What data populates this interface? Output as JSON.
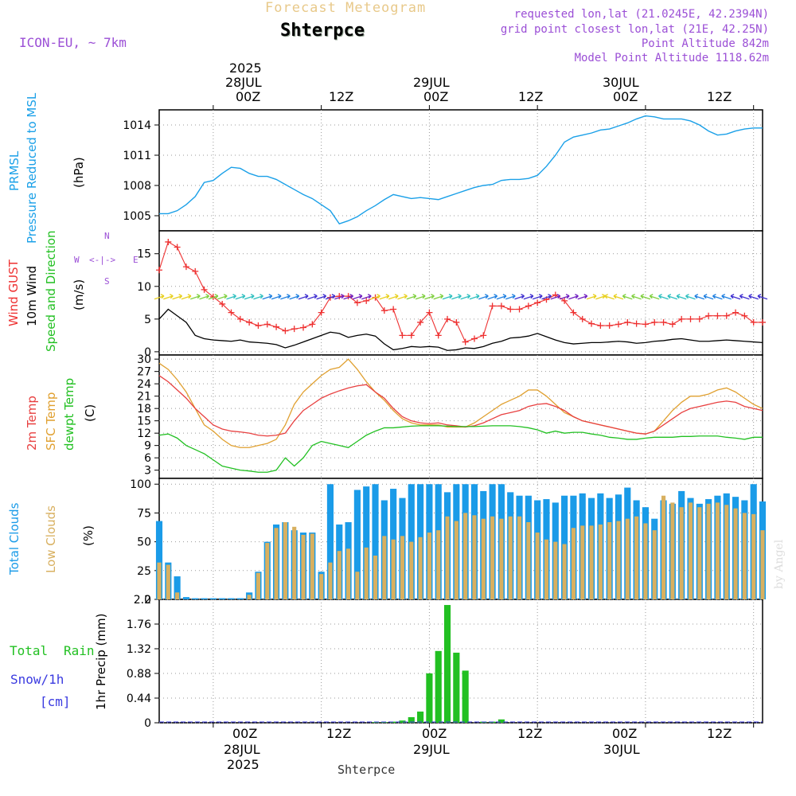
{
  "header": {
    "title": "Forecast Meteogram",
    "station": "Shterpce",
    "model": "ICON-EU, ~ 7km",
    "requested": "requested lon,lat (21.0245E, 42.2394N)",
    "grid": "grid point closest lon,lat (21E, 42.25N)",
    "point_alt": "Point Altitude 842m",
    "model_alt": "Model Point Altitude 1118.62m"
  },
  "time_axis": {
    "top": [
      {
        "l1": "2025",
        "l2": "28JUL",
        "l3": "00Z"
      },
      {
        "l1": "",
        "l2": "",
        "l3": "12Z"
      },
      {
        "l1": "",
        "l2": "29JUL",
        "l3": "00Z"
      },
      {
        "l1": "",
        "l2": "",
        "l3": "12Z"
      },
      {
        "l1": "",
        "l2": "30JUL",
        "l3": "00Z"
      },
      {
        "l1": "",
        "l2": "",
        "l3": "12Z"
      }
    ],
    "bottom": [
      {
        "l1": "00Z",
        "l2": "28JUL",
        "l3": "2025"
      },
      {
        "l1": "12Z",
        "l2": "",
        "l3": ""
      },
      {
        "l1": "00Z",
        "l2": "29JUL",
        "l3": ""
      },
      {
        "l1": "12Z",
        "l2": "",
        "l3": ""
      },
      {
        "l1": "00Z",
        "l2": "30JUL",
        "l3": ""
      },
      {
        "l1": "12Z",
        "l2": "",
        "l3": ""
      }
    ]
  },
  "panels": {
    "pressure": {
      "label1": "PRMSL",
      "label2": "Pressure Reduced to MSL",
      "unit": "(hPa)",
      "ticks": [
        "1014",
        "1011",
        "1008",
        "1005"
      ]
    },
    "wind": {
      "label_gust": "Wind GUST",
      "label_wind": "10m Wind",
      "label_dir": "Speed and Direction",
      "unit": "(m/s)",
      "ticks": [
        "15",
        "10",
        "5",
        "0"
      ],
      "compass": {
        "n": "N",
        "s": "S",
        "w": "W",
        "e": "E",
        "arrows": "<-|->"
      }
    },
    "temp": {
      "label1": "2m Temp",
      "label2": "SFC Temp",
      "label3": "dewpt Temp",
      "unit": "(C)",
      "ticks": [
        "30",
        "27",
        "24",
        "21",
        "18",
        "15",
        "12",
        "9",
        "6",
        "3"
      ]
    },
    "clouds": {
      "label1": "Total Clouds",
      "label2": "Low Clouds",
      "unit": "(%)",
      "ticks": [
        "100",
        "75",
        "50",
        "25",
        "0"
      ]
    },
    "precip": {
      "label1": "Total",
      "label1b": "Rain",
      "label2": "Snow/1h",
      "label3": "[cm]",
      "unit": "1hr Precip (mm)",
      "ticks": [
        "2.2",
        "1.76",
        "1.32",
        "0.88",
        "0.44",
        "0"
      ]
    }
  },
  "footer": {
    "station": "Shterpce",
    "watermark": "by Angel"
  },
  "colors": {
    "pressure": "#1aa0e8",
    "gust": "#ee3030",
    "wind": "#000000",
    "t2m": "#e84040",
    "sfc": "#e0a030",
    "dew": "#22c022",
    "total_cloud": "#1a9be8",
    "low_cloud": "#d8b060",
    "rain": "#22c022",
    "snow": "#3a3ae0",
    "label_purple": "#9b4fd6"
  },
  "chart_data": {
    "type": "line",
    "x_unit": "hours from 2025-07-27 18Z",
    "x_range": [
      0,
      67
    ],
    "pressure": {
      "ylim": [
        1003.5,
        1015.5
      ],
      "x": [
        0,
        1,
        2,
        3,
        4,
        5,
        6,
        7,
        8,
        9,
        10,
        11,
        12,
        13,
        14,
        15,
        16,
        17,
        18,
        19,
        20,
        21,
        22,
        23,
        24,
        25,
        26,
        27,
        28,
        29,
        30,
        31,
        32,
        33,
        34,
        35,
        36,
        37,
        38,
        39,
        40,
        41,
        42,
        43,
        44,
        45,
        46,
        47,
        48,
        49,
        50,
        51,
        52,
        53,
        54,
        55,
        56,
        57,
        58,
        59,
        60,
        61,
        62,
        63,
        64,
        65,
        66,
        67
      ],
      "values": [
        1005.2,
        1005.2,
        1005.5,
        1006.1,
        1006.9,
        1008.3,
        1008.5,
        1009.2,
        1009.8,
        1009.7,
        1009.2,
        1008.9,
        1008.9,
        1008.6,
        1008.1,
        1007.6,
        1007.1,
        1006.7,
        1006.1,
        1005.5,
        1004.2,
        1004.5,
        1004.9,
        1005.5,
        1006.0,
        1006.6,
        1007.1,
        1006.9,
        1006.7,
        1006.8,
        1006.7,
        1006.6,
        1006.9,
        1007.2,
        1007.5,
        1007.8,
        1008.0,
        1008.1,
        1008.5,
        1008.6,
        1008.6,
        1008.7,
        1009.0,
        1009.9,
        1011.0,
        1012.3,
        1012.8,
        1013.0,
        1013.2,
        1013.5,
        1013.6,
        1013.9,
        1014.2,
        1014.6,
        1014.9,
        1014.8,
        1014.6,
        1014.6,
        1014.6,
        1014.4,
        1014.0,
        1013.4,
        1013.0,
        1013.1,
        1013.4,
        1013.6,
        1013.7,
        1013.7
      ]
    },
    "wind": {
      "ylim": [
        -0.5,
        18.5
      ],
      "x": [
        0,
        1,
        2,
        3,
        4,
        5,
        6,
        7,
        8,
        9,
        10,
        11,
        12,
        13,
        14,
        15,
        16,
        17,
        18,
        19,
        20,
        21,
        22,
        23,
        24,
        25,
        26,
        27,
        28,
        29,
        30,
        31,
        32,
        33,
        34,
        35,
        36,
        37,
        38,
        39,
        40,
        41,
        42,
        43,
        44,
        45,
        46,
        47,
        48,
        49,
        50,
        51,
        52,
        53,
        54,
        55,
        56,
        57,
        58,
        59,
        60,
        61,
        62,
        63,
        64,
        65,
        66,
        67
      ],
      "gust": [
        12.5,
        16.8,
        16.0,
        13.0,
        12.3,
        9.5,
        8.4,
        7.3,
        6.0,
        5.0,
        4.5,
        4.0,
        4.2,
        3.8,
        3.2,
        3.5,
        3.7,
        4.2,
        6.0,
        8.3,
        8.5,
        8.5,
        7.5,
        7.8,
        8.3,
        6.3,
        6.5,
        2.5,
        2.5,
        4.5,
        6.0,
        2.5,
        5.0,
        4.5,
        1.5,
        2.0,
        2.5,
        7.0,
        7.0,
        6.5,
        6.5,
        7.0,
        7.5,
        8.0,
        8.7,
        7.8,
        6.0,
        5.0,
        4.3,
        4.0,
        4.0,
        4.2,
        4.5,
        4.3,
        4.2,
        4.5,
        4.5,
        4.2,
        5.0,
        5.0,
        5.0,
        5.5,
        5.5,
        5.5,
        6.0,
        5.5,
        4.5,
        4.5
      ],
      "speed": [
        5.0,
        6.5,
        5.5,
        4.5,
        2.5,
        2.0,
        1.8,
        1.7,
        1.6,
        1.8,
        1.5,
        1.4,
        1.3,
        1.1,
        0.6,
        1.0,
        1.5,
        2.0,
        2.5,
        3.0,
        2.8,
        2.2,
        2.5,
        2.7,
        2.4,
        1.2,
        0.3,
        0.5,
        0.8,
        0.7,
        0.8,
        0.7,
        0.2,
        0.3,
        0.6,
        0.5,
        0.8,
        1.3,
        1.6,
        2.1,
        2.2,
        2.4,
        2.8,
        2.3,
        1.8,
        1.4,
        1.2,
        1.3,
        1.4,
        1.4,
        1.5,
        1.6,
        1.5,
        1.3,
        1.4,
        1.6,
        1.7,
        1.9,
        2.0,
        1.8,
        1.6,
        1.6,
        1.7,
        1.8,
        1.7,
        1.6,
        1.5,
        1.4
      ]
    },
    "temp": {
      "ylim": [
        1,
        31
      ],
      "x": [
        0,
        1,
        2,
        3,
        4,
        5,
        6,
        7,
        8,
        9,
        10,
        11,
        12,
        13,
        14,
        15,
        16,
        17,
        18,
        19,
        20,
        21,
        22,
        23,
        24,
        25,
        26,
        27,
        28,
        29,
        30,
        31,
        32,
        33,
        34,
        35,
        36,
        37,
        38,
        39,
        40,
        41,
        42,
        43,
        44,
        45,
        46,
        47,
        48,
        49,
        50,
        51,
        52,
        53,
        54,
        55,
        56,
        57,
        58,
        59,
        60,
        61,
        62,
        63,
        64,
        65,
        66,
        67
      ],
      "t2m": [
        26.0,
        24.5,
        22.5,
        20.5,
        18.0,
        16.0,
        14.0,
        13.0,
        12.5,
        12.3,
        12.0,
        11.5,
        11.3,
        11.5,
        12.0,
        15.0,
        17.5,
        19.0,
        20.5,
        21.5,
        22.3,
        23.0,
        23.5,
        23.8,
        22.0,
        20.5,
        18.0,
        16.0,
        15.0,
        14.5,
        14.3,
        14.5,
        14.0,
        13.8,
        13.5,
        13.8,
        14.5,
        15.5,
        16.5,
        17.0,
        17.5,
        18.5,
        19.0,
        19.2,
        18.5,
        17.5,
        16.0,
        15.0,
        14.5,
        14.0,
        13.5,
        13.0,
        12.5,
        12.0,
        11.8,
        12.5,
        14.0,
        15.5,
        17.0,
        18.0,
        18.5,
        19.0,
        19.5,
        19.8,
        19.5,
        18.5,
        18.0,
        17.5
      ],
      "sfc": [
        29.0,
        27.5,
        25.0,
        22.0,
        18.0,
        14.0,
        12.5,
        10.5,
        9.0,
        8.5,
        8.5,
        9.0,
        9.5,
        10.5,
        14.0,
        19.0,
        22.0,
        24.0,
        26.0,
        27.5,
        28.0,
        30.0,
        27.5,
        24.5,
        22.0,
        20.0,
        17.5,
        15.5,
        14.5,
        14.0,
        14.0,
        14.0,
        13.5,
        13.5,
        13.5,
        14.5,
        16.0,
        17.5,
        19.0,
        20.0,
        21.0,
        22.5,
        22.5,
        21.0,
        19.0,
        17.0,
        16.0,
        15.0,
        14.5,
        14.0,
        13.5,
        13.0,
        12.5,
        12.0,
        11.8,
        12.5,
        15.0,
        17.5,
        19.5,
        21.0,
        21.0,
        21.5,
        22.5,
        23.0,
        22.0,
        20.5,
        19.0,
        18.0
      ],
      "dew": [
        11.5,
        11.8,
        10.8,
        9.0,
        8.0,
        7.0,
        5.5,
        4.0,
        3.5,
        3.0,
        2.8,
        2.5,
        2.5,
        3.0,
        6.0,
        4.0,
        6.0,
        9.0,
        10.0,
        9.5,
        9.0,
        8.5,
        10.0,
        11.5,
        12.5,
        13.3,
        13.3,
        13.5,
        13.7,
        13.8,
        13.8,
        13.8,
        13.7,
        13.6,
        13.6,
        13.6,
        13.7,
        13.8,
        13.8,
        13.8,
        13.6,
        13.3,
        12.8,
        12.0,
        12.5,
        12.0,
        12.2,
        12.2,
        11.8,
        11.5,
        11.0,
        10.8,
        10.5,
        10.5,
        10.8,
        11.0,
        11.0,
        11.0,
        11.2,
        11.2,
        11.3,
        11.3,
        11.3,
        11.0,
        10.8,
        10.5,
        11.0,
        11.0
      ]
    },
    "clouds": {
      "ylim": [
        0,
        105
      ],
      "x": [
        0,
        1,
        2,
        3,
        4,
        5,
        6,
        7,
        8,
        9,
        10,
        11,
        12,
        13,
        14,
        15,
        16,
        17,
        18,
        19,
        20,
        21,
        22,
        23,
        24,
        25,
        26,
        27,
        28,
        29,
        30,
        31,
        32,
        33,
        34,
        35,
        36,
        37,
        38,
        39,
        40,
        41,
        42,
        43,
        44,
        45,
        46,
        47,
        48,
        49,
        50,
        51,
        52,
        53,
        54,
        55,
        56,
        57,
        58,
        59,
        60,
        61,
        62,
        63,
        64,
        65,
        66,
        67
      ],
      "total": [
        68,
        32,
        20,
        2,
        1,
        1,
        1,
        1,
        1,
        1,
        6,
        24,
        50,
        65,
        67,
        60,
        58,
        58,
        24,
        100,
        65,
        67,
        95,
        98,
        100,
        86,
        96,
        88,
        100,
        100,
        100,
        100,
        93,
        100,
        100,
        100,
        94,
        100,
        100,
        93,
        90,
        90,
        86,
        87,
        84,
        90,
        90,
        92,
        88,
        92,
        88,
        91,
        97,
        86,
        80,
        70,
        86,
        83,
        94,
        88,
        83,
        87,
        90,
        92,
        89,
        86,
        100,
        85
      ],
      "low": [
        32,
        30,
        6,
        0,
        0,
        0,
        0,
        0,
        0,
        0,
        4,
        23,
        49,
        62,
        67,
        63,
        56,
        57,
        22,
        32,
        42,
        44,
        24,
        45,
        38,
        55,
        52,
        55,
        50,
        54,
        58,
        60,
        72,
        68,
        75,
        73,
        70,
        72,
        70,
        72,
        72,
        67,
        58,
        52,
        50,
        48,
        62,
        64,
        64,
        65,
        67,
        68,
        70,
        72,
        66,
        60,
        90,
        84,
        80,
        84,
        80,
        83,
        84,
        82,
        79,
        75,
        74,
        60
      ]
    },
    "precip": {
      "ylim": [
        0,
        2.2
      ],
      "x": [
        24,
        25,
        26,
        27,
        28,
        29,
        30,
        31,
        32,
        33,
        34,
        35,
        36,
        37,
        38
      ],
      "values": [
        0.01,
        0.01,
        0.02,
        0.04,
        0.1,
        0.2,
        0.88,
        1.28,
        2.1,
        1.25,
        0.93,
        0,
        0.02,
        0.02,
        0.06
      ]
    }
  }
}
